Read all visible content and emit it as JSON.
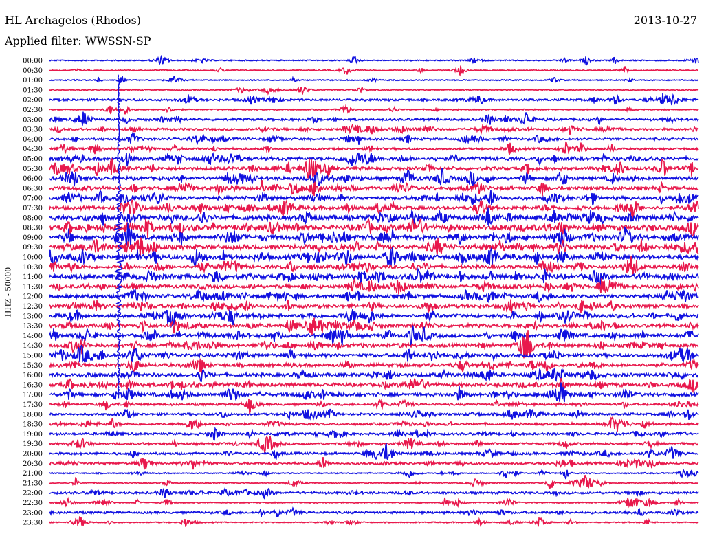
{
  "header": {
    "station": "HL Archagelos (Rhodos)",
    "date": "2013-10-27",
    "filter": "Applied filter: WWSSN-SP"
  },
  "chart_data": {
    "type": "line",
    "ylabel": "HHZ - 50000",
    "rows": [
      "00:00",
      "00:30",
      "01:00",
      "01:30",
      "02:00",
      "02:30",
      "03:00",
      "03:30",
      "04:00",
      "04:30",
      "05:00",
      "05:30",
      "06:00",
      "06:30",
      "07:00",
      "07:30",
      "08:00",
      "08:30",
      "09:00",
      "09:30",
      "10:00",
      "10:30",
      "11:00",
      "11:30",
      "12:00",
      "12:30",
      "13:00",
      "13:30",
      "14:00",
      "14:30",
      "15:00",
      "15:30",
      "16:00",
      "16:30",
      "17:00",
      "17:30",
      "18:00",
      "18:30",
      "19:00",
      "19:30",
      "20:00",
      "20:30",
      "21:00",
      "21:30",
      "22:00",
      "22:30",
      "23:00",
      "23:30"
    ],
    "series_colors": [
      "#1010e0",
      "#e8184c"
    ],
    "noise_level": [
      1,
      1,
      1,
      1,
      2,
      1,
      2,
      2,
      2,
      2,
      3,
      3,
      3,
      3,
      3,
      3,
      4,
      4,
      4,
      4,
      4,
      3,
      4,
      3,
      3,
      3,
      3,
      3,
      3,
      3,
      3,
      3,
      3,
      3,
      3,
      2,
      2,
      2,
      2,
      2,
      2,
      2,
      1,
      1,
      2,
      1,
      2,
      1
    ],
    "main_event": {
      "time_row": 20,
      "peak_minute": 3.2,
      "amplitude": 7
    },
    "spike_density": [
      0.2,
      0.15,
      0.2,
      0.1,
      0.3,
      0.2,
      0.4,
      0.4,
      0.4,
      0.4,
      0.5,
      0.6,
      0.6,
      0.6,
      0.6,
      0.6,
      0.7,
      0.7,
      0.7,
      0.7,
      0.7,
      0.6,
      0.6,
      0.6,
      0.6,
      0.6,
      0.6,
      0.6,
      0.6,
      0.6,
      0.6,
      0.5,
      0.5,
      0.5,
      0.5,
      0.4,
      0.4,
      0.4,
      0.4,
      0.4,
      0.4,
      0.4,
      0.3,
      0.3,
      0.3,
      0.3,
      0.3,
      0.3
    ]
  }
}
